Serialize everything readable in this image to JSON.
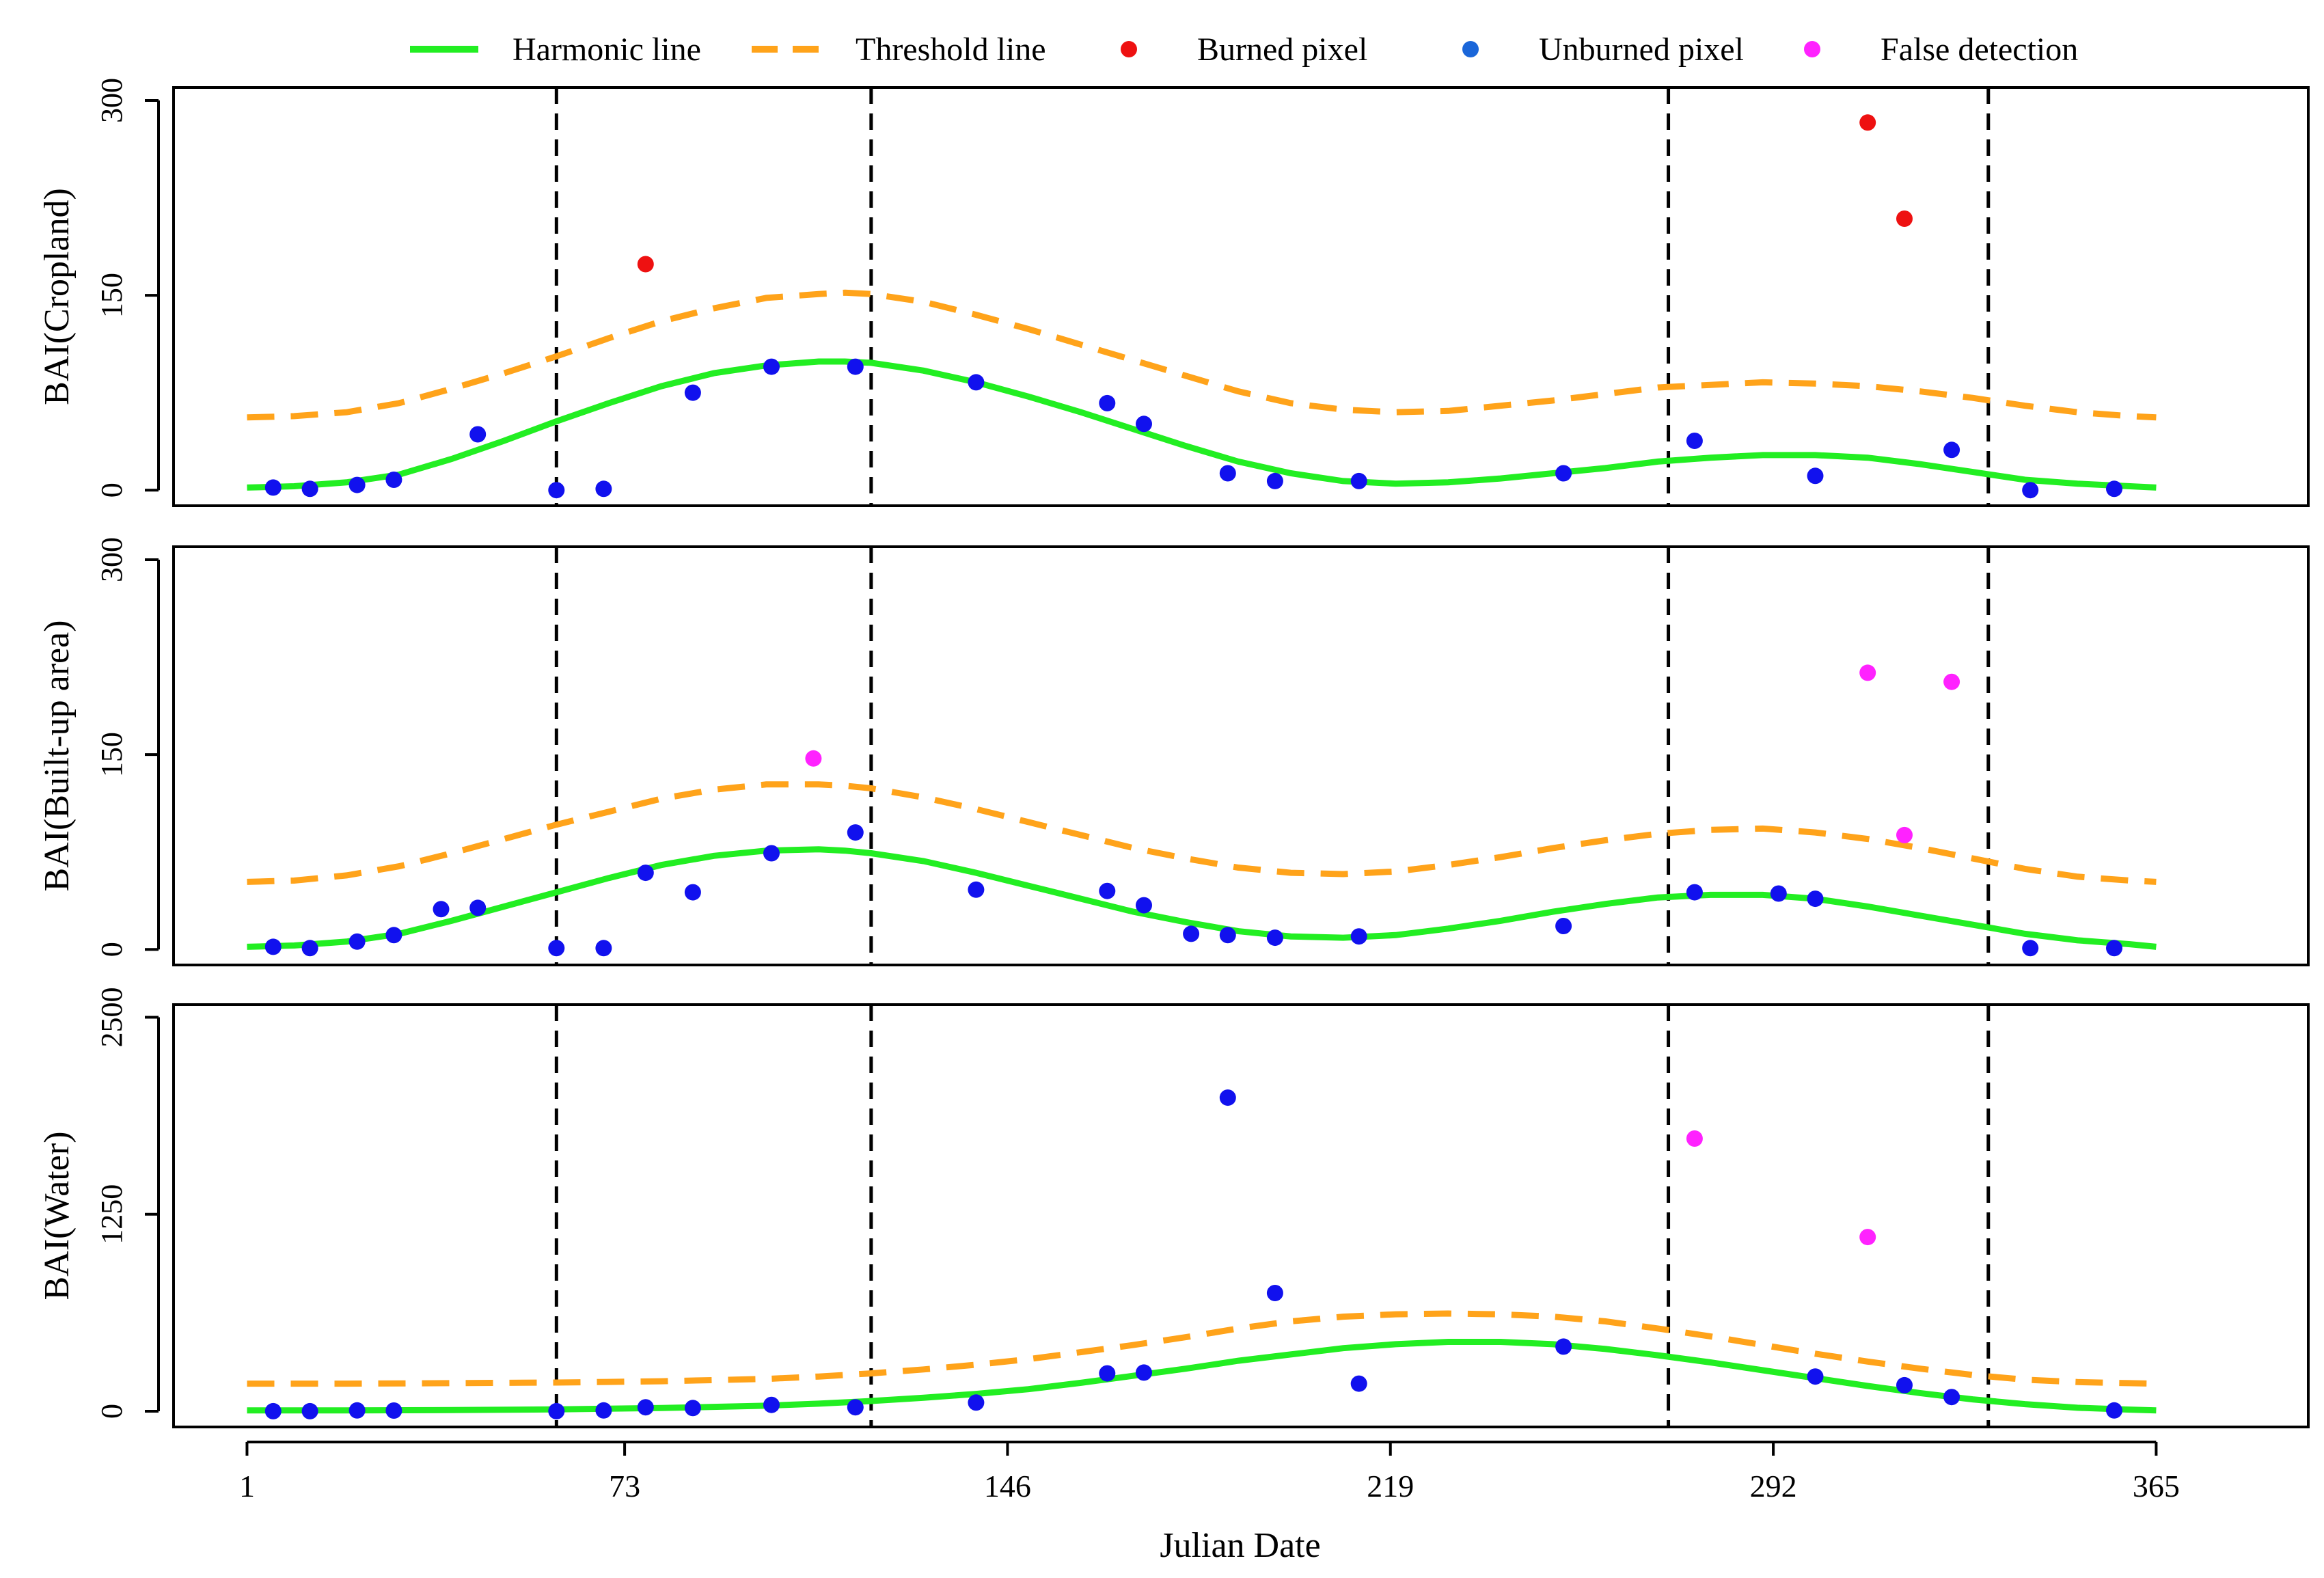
{
  "colors": {
    "harmonic": "#22ee22",
    "threshold": "#ffa31a",
    "burned": "#ee1111",
    "unburned": "#1111ee",
    "false_detection": "#ff22ff",
    "legend_unburned": "#1a66d9",
    "axis": "#000000"
  },
  "chart_data": {
    "type": "scatter",
    "xlabel": "Julian Date",
    "xlim": [
      1,
      365
    ],
    "x_ticks": [
      1,
      73,
      146,
      219,
      292,
      365
    ],
    "x_tick_labels": [
      "1",
      "73",
      "146",
      "219",
      "292",
      "365"
    ],
    "vlines": [
      60,
      120,
      272,
      333
    ],
    "legend": {
      "position": "top",
      "entries": [
        {
          "label": "Harmonic line",
          "kind": "line",
          "color_key": "harmonic"
        },
        {
          "label": "Threshold line",
          "kind": "dashed",
          "color_key": "threshold"
        },
        {
          "label": "Burned pixel",
          "kind": "point",
          "color_key": "burned"
        },
        {
          "label": "Unburned pixel",
          "kind": "point",
          "color_key": "legend_unburned"
        },
        {
          "label": "False detection",
          "kind": "point",
          "color_key": "false_detection"
        }
      ]
    },
    "panels": [
      {
        "ylabel": "BAI(Cropland)",
        "ylim": [
          -12,
          310
        ],
        "y_ticks": [
          0,
          150,
          300
        ],
        "y_tick_labels": [
          "0",
          "150",
          "300"
        ],
        "harmonic": {
          "x": [
            1,
            10,
            20,
            30,
            40,
            50,
            60,
            70,
            80,
            90,
            100,
            110,
            115,
            120,
            130,
            140,
            150,
            160,
            170,
            180,
            190,
            200,
            210,
            220,
            230,
            240,
            250,
            260,
            270,
            280,
            290,
            300,
            310,
            320,
            330,
            340,
            350,
            360,
            365
          ],
          "y": [
            2,
            3,
            6,
            12,
            24,
            38,
            53,
            67,
            80,
            90,
            96,
            99,
            99,
            98,
            92,
            83,
            72,
            60,
            47,
            34,
            22,
            13,
            7,
            5,
            6,
            9,
            13,
            17,
            22,
            25,
            27,
            27,
            25,
            20,
            14,
            8,
            5,
            3,
            2
          ]
        },
        "threshold": {
          "x": [
            1,
            10,
            20,
            30,
            40,
            50,
            60,
            70,
            80,
            90,
            100,
            110,
            115,
            120,
            130,
            140,
            150,
            160,
            170,
            180,
            190,
            200,
            210,
            220,
            230,
            240,
            250,
            260,
            270,
            280,
            290,
            300,
            310,
            320,
            330,
            340,
            350,
            360,
            365
          ],
          "y": [
            56,
            57,
            60,
            67,
            78,
            90,
            103,
            117,
            130,
            140,
            148,
            151,
            152,
            151,
            145,
            135,
            124,
            112,
            100,
            88,
            76,
            67,
            62,
            60,
            61,
            65,
            69,
            74,
            79,
            81,
            83,
            82,
            80,
            76,
            71,
            65,
            60,
            57,
            56
          ]
        },
        "points": [
          {
            "x": 6,
            "y": 2,
            "cat": "unburned"
          },
          {
            "x": 13,
            "y": 1,
            "cat": "unburned"
          },
          {
            "x": 22,
            "y": 4,
            "cat": "unburned"
          },
          {
            "x": 29,
            "y": 8,
            "cat": "unburned"
          },
          {
            "x": 45,
            "y": 43,
            "cat": "unburned"
          },
          {
            "x": 60,
            "y": 0,
            "cat": "unburned"
          },
          {
            "x": 69,
            "y": 1,
            "cat": "unburned"
          },
          {
            "x": 77,
            "y": 174,
            "cat": "burned"
          },
          {
            "x": 86,
            "y": 75,
            "cat": "unburned"
          },
          {
            "x": 101,
            "y": 95,
            "cat": "unburned"
          },
          {
            "x": 117,
            "y": 95,
            "cat": "unburned"
          },
          {
            "x": 140,
            "y": 83,
            "cat": "unburned"
          },
          {
            "x": 165,
            "y": 67,
            "cat": "unburned"
          },
          {
            "x": 172,
            "y": 51,
            "cat": "unburned"
          },
          {
            "x": 188,
            "y": 13,
            "cat": "unburned"
          },
          {
            "x": 197,
            "y": 7,
            "cat": "unburned"
          },
          {
            "x": 213,
            "y": 7,
            "cat": "unburned"
          },
          {
            "x": 252,
            "y": 13,
            "cat": "unburned"
          },
          {
            "x": 277,
            "y": 38,
            "cat": "unburned"
          },
          {
            "x": 300,
            "y": 11,
            "cat": "unburned"
          },
          {
            "x": 310,
            "y": 283,
            "cat": "burned"
          },
          {
            "x": 317,
            "y": 209,
            "cat": "burned"
          },
          {
            "x": 326,
            "y": 31,
            "cat": "unburned"
          },
          {
            "x": 341,
            "y": 0,
            "cat": "unburned"
          },
          {
            "x": 357,
            "y": 1,
            "cat": "unburned"
          }
        ]
      },
      {
        "ylabel": "BAI(Built-up area)",
        "ylim": [
          -12,
          310
        ],
        "y_ticks": [
          0,
          150,
          300
        ],
        "y_tick_labels": [
          "0",
          "150",
          "300"
        ],
        "harmonic": {
          "x": [
            1,
            10,
            20,
            30,
            40,
            50,
            60,
            70,
            80,
            90,
            100,
            110,
            115,
            120,
            130,
            140,
            150,
            160,
            170,
            180,
            190,
            200,
            210,
            220,
            230,
            240,
            250,
            260,
            270,
            280,
            290,
            300,
            310,
            320,
            330,
            340,
            350,
            360,
            365
          ],
          "y": [
            2,
            3,
            6,
            12,
            22,
            33,
            44,
            55,
            65,
            72,
            76,
            77,
            76,
            74,
            68,
            59,
            49,
            39,
            29,
            21,
            14,
            10,
            9,
            11,
            16,
            22,
            29,
            35,
            40,
            42,
            42,
            39,
            33,
            26,
            19,
            12,
            7,
            4,
            2
          ]
        },
        "threshold": {
          "x": [
            1,
            10,
            20,
            30,
            40,
            50,
            60,
            70,
            80,
            90,
            100,
            110,
            115,
            120,
            130,
            140,
            150,
            160,
            170,
            180,
            190,
            200,
            210,
            220,
            230,
            240,
            250,
            260,
            270,
            280,
            290,
            300,
            310,
            320,
            330,
            340,
            350,
            360,
            365
          ],
          "y": [
            52,
            53,
            57,
            64,
            74,
            85,
            96,
            106,
            116,
            123,
            127,
            127,
            126,
            124,
            117,
            108,
            98,
            88,
            78,
            70,
            63,
            59,
            58,
            60,
            65,
            71,
            78,
            84,
            89,
            92,
            93,
            90,
            85,
            78,
            70,
            62,
            56,
            53,
            52
          ]
        },
        "points": [
          {
            "x": 6,
            "y": 2,
            "cat": "unburned"
          },
          {
            "x": 13,
            "y": 1,
            "cat": "unburned"
          },
          {
            "x": 22,
            "y": 6,
            "cat": "unburned"
          },
          {
            "x": 29,
            "y": 11,
            "cat": "unburned"
          },
          {
            "x": 38,
            "y": 31,
            "cat": "unburned"
          },
          {
            "x": 45,
            "y": 32,
            "cat": "unburned"
          },
          {
            "x": 60,
            "y": 1,
            "cat": "unburned"
          },
          {
            "x": 69,
            "y": 1,
            "cat": "unburned"
          },
          {
            "x": 77,
            "y": 59,
            "cat": "unburned"
          },
          {
            "x": 86,
            "y": 44,
            "cat": "unburned"
          },
          {
            "x": 101,
            "y": 74,
            "cat": "unburned"
          },
          {
            "x": 109,
            "y": 147,
            "cat": "false"
          },
          {
            "x": 117,
            "y": 90,
            "cat": "unburned"
          },
          {
            "x": 140,
            "y": 46,
            "cat": "unburned"
          },
          {
            "x": 165,
            "y": 45,
            "cat": "unburned"
          },
          {
            "x": 172,
            "y": 34,
            "cat": "unburned"
          },
          {
            "x": 181,
            "y": 12,
            "cat": "unburned"
          },
          {
            "x": 188,
            "y": 11,
            "cat": "unburned"
          },
          {
            "x": 197,
            "y": 9,
            "cat": "unburned"
          },
          {
            "x": 213,
            "y": 10,
            "cat": "unburned"
          },
          {
            "x": 252,
            "y": 18,
            "cat": "unburned"
          },
          {
            "x": 277,
            "y": 44,
            "cat": "unburned"
          },
          {
            "x": 293,
            "y": 43,
            "cat": "unburned"
          },
          {
            "x": 300,
            "y": 39,
            "cat": "unburned"
          },
          {
            "x": 310,
            "y": 213,
            "cat": "false"
          },
          {
            "x": 317,
            "y": 88,
            "cat": "false"
          },
          {
            "x": 326,
            "y": 206,
            "cat": "false"
          },
          {
            "x": 341,
            "y": 1,
            "cat": "unburned"
          },
          {
            "x": 357,
            "y": 1,
            "cat": "unburned"
          }
        ]
      },
      {
        "ylabel": "BAI(Water)",
        "ylim": [
          -100,
          2580
        ],
        "y_ticks": [
          0,
          1250,
          2500
        ],
        "y_tick_labels": [
          "0",
          "1250",
          "2500"
        ],
        "harmonic": {
          "x": [
            1,
            20,
            40,
            60,
            80,
            100,
            110,
            120,
            130,
            140,
            150,
            160,
            170,
            180,
            190,
            200,
            210,
            220,
            230,
            240,
            250,
            260,
            270,
            280,
            290,
            300,
            310,
            320,
            330,
            340,
            350,
            360,
            365
          ],
          "y": [
            5,
            5,
            7,
            12,
            20,
            35,
            48,
            65,
            85,
            110,
            140,
            180,
            225,
            270,
            320,
            360,
            400,
            425,
            440,
            440,
            425,
            395,
            355,
            310,
            260,
            210,
            160,
            115,
            75,
            45,
            22,
            10,
            5
          ]
        },
        "threshold": {
          "x": [
            1,
            20,
            40,
            60,
            80,
            100,
            110,
            120,
            130,
            140,
            150,
            160,
            170,
            180,
            190,
            200,
            210,
            220,
            230,
            240,
            250,
            260,
            270,
            280,
            290,
            300,
            310,
            320,
            330,
            340,
            350,
            360,
            365
          ],
          "y": [
            175,
            175,
            178,
            182,
            190,
            205,
            220,
            240,
            265,
            295,
            330,
            375,
            420,
            470,
            525,
            570,
            600,
            615,
            620,
            615,
            600,
            570,
            525,
            475,
            420,
            365,
            315,
            270,
            230,
            200,
            185,
            178,
            175
          ]
        },
        "points": [
          {
            "x": 6,
            "y": 0,
            "cat": "unburned"
          },
          {
            "x": 13,
            "y": 0,
            "cat": "unburned"
          },
          {
            "x": 22,
            "y": 5,
            "cat": "unburned"
          },
          {
            "x": 29,
            "y": 4,
            "cat": "unburned"
          },
          {
            "x": 60,
            "y": 0,
            "cat": "unburned"
          },
          {
            "x": 69,
            "y": 5,
            "cat": "unburned"
          },
          {
            "x": 77,
            "y": 25,
            "cat": "unburned"
          },
          {
            "x": 86,
            "y": 20,
            "cat": "unburned"
          },
          {
            "x": 101,
            "y": 40,
            "cat": "unburned"
          },
          {
            "x": 117,
            "y": 25,
            "cat": "unburned"
          },
          {
            "x": 140,
            "y": 55,
            "cat": "unburned"
          },
          {
            "x": 165,
            "y": 240,
            "cat": "unburned"
          },
          {
            "x": 172,
            "y": 245,
            "cat": "unburned"
          },
          {
            "x": 188,
            "y": 1990,
            "cat": "unburned"
          },
          {
            "x": 197,
            "y": 750,
            "cat": "unburned"
          },
          {
            "x": 213,
            "y": 175,
            "cat": "unburned"
          },
          {
            "x": 252,
            "y": 410,
            "cat": "unburned"
          },
          {
            "x": 277,
            "y": 1730,
            "cat": "false"
          },
          {
            "x": 300,
            "y": 220,
            "cat": "unburned"
          },
          {
            "x": 310,
            "y": 1105,
            "cat": "false"
          },
          {
            "x": 317,
            "y": 165,
            "cat": "unburned"
          },
          {
            "x": 326,
            "y": 90,
            "cat": "unburned"
          },
          {
            "x": 357,
            "y": 5,
            "cat": "unburned"
          }
        ]
      }
    ]
  }
}
